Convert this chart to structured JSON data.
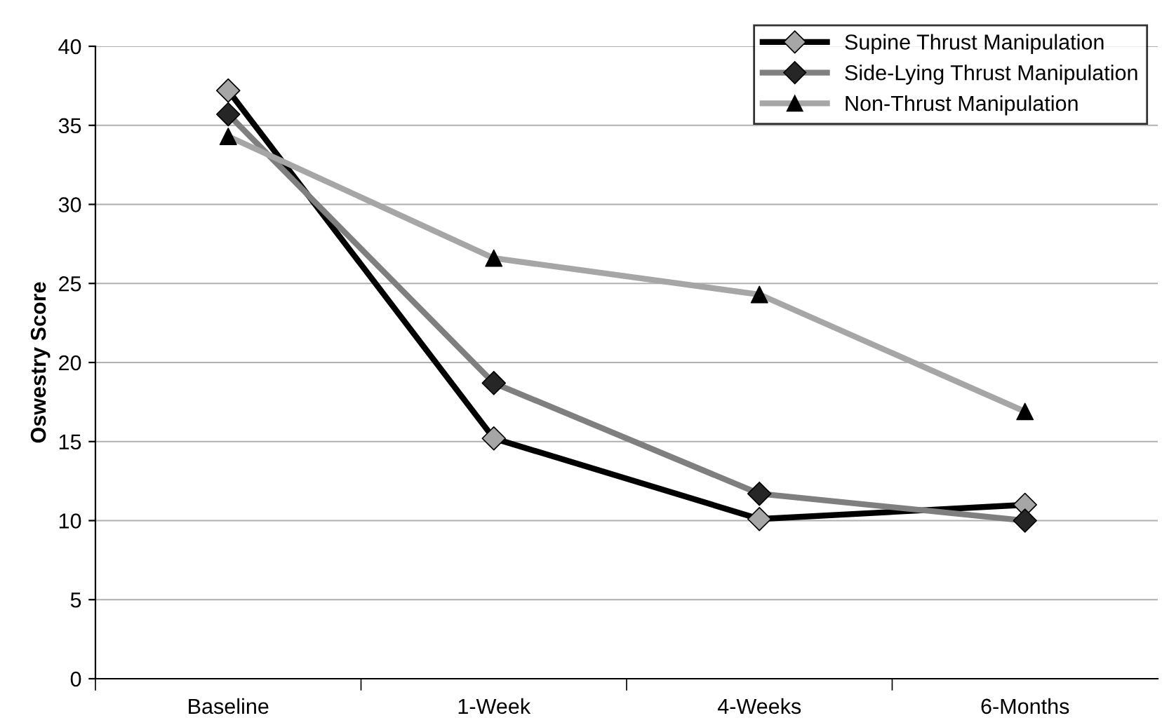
{
  "chart_data": {
    "type": "line",
    "ylabel": "Oswestry Score",
    "categories": [
      "Baseline",
      "1-Week",
      "4-Weeks",
      "6-Months"
    ],
    "series": [
      {
        "name": "Supine Thrust Manipulation",
        "color": "#000000",
        "colors": [
          "#a6a6a6",
          "#a6a6a6",
          "#a6a6a6",
          "#a6a6a6"
        ],
        "marker": "diamond",
        "values": [
          37.2,
          15.2,
          10.1,
          11.0
        ]
      },
      {
        "name": "Side-Lying Thrust Manipulation",
        "color": "#7f7f7f",
        "colors": [
          "#262626",
          "#262626",
          "#262626",
          "#262626"
        ],
        "marker": "diamond",
        "values": [
          35.7,
          18.7,
          11.7,
          10.0
        ]
      },
      {
        "name": "Non-Thrust Manipulation",
        "color": "#a6a6a6",
        "colors": [
          "#000000",
          "#000000",
          "#000000",
          "#000000"
        ],
        "marker": "triangle",
        "values": [
          34.3,
          26.6,
          24.3,
          16.9
        ]
      }
    ],
    "ylim": [
      0,
      40
    ],
    "yticks": [
      0,
      5,
      10,
      15,
      20,
      25,
      30,
      35,
      40
    ],
    "grid": "y",
    "legend": "top right"
  }
}
